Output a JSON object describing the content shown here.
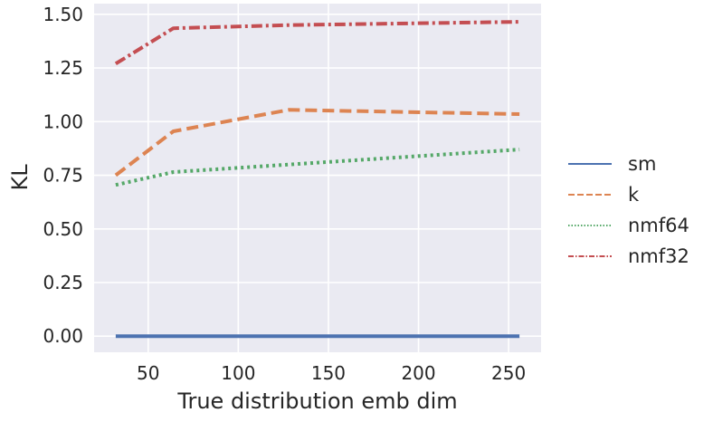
{
  "chart_data": {
    "type": "line",
    "title": "",
    "xlabel": "True distribution emb dim",
    "ylabel": "KL",
    "x": [
      32,
      64,
      128,
      256
    ],
    "xlim": [
      20,
      268
    ],
    "ylim": [
      -0.075,
      1.55
    ],
    "xticks": [
      50,
      100,
      150,
      200,
      250
    ],
    "yticks": [
      0.0,
      0.25,
      0.5,
      0.75,
      1.0,
      1.25,
      1.5
    ],
    "ytick_labels": [
      "0.00",
      "0.25",
      "0.50",
      "0.75",
      "1.00",
      "1.25",
      "1.50"
    ],
    "grid": true,
    "legend_position": "right",
    "series": [
      {
        "name": "sm",
        "values": [
          0.0,
          0.0,
          0.0,
          0.0
        ],
        "color": "#4c72b0",
        "style": "solid"
      },
      {
        "name": "k",
        "values": [
          0.75,
          0.955,
          1.055,
          1.035
        ],
        "color": "#dd8452",
        "style": "dashed"
      },
      {
        "name": "nmf64",
        "values": [
          0.705,
          0.765,
          0.8,
          0.87
        ],
        "color": "#55a868",
        "style": "dotted"
      },
      {
        "name": "nmf32",
        "values": [
          1.27,
          1.435,
          1.45,
          1.465
        ],
        "color": "#c44e52",
        "style": "dashdot"
      }
    ]
  }
}
